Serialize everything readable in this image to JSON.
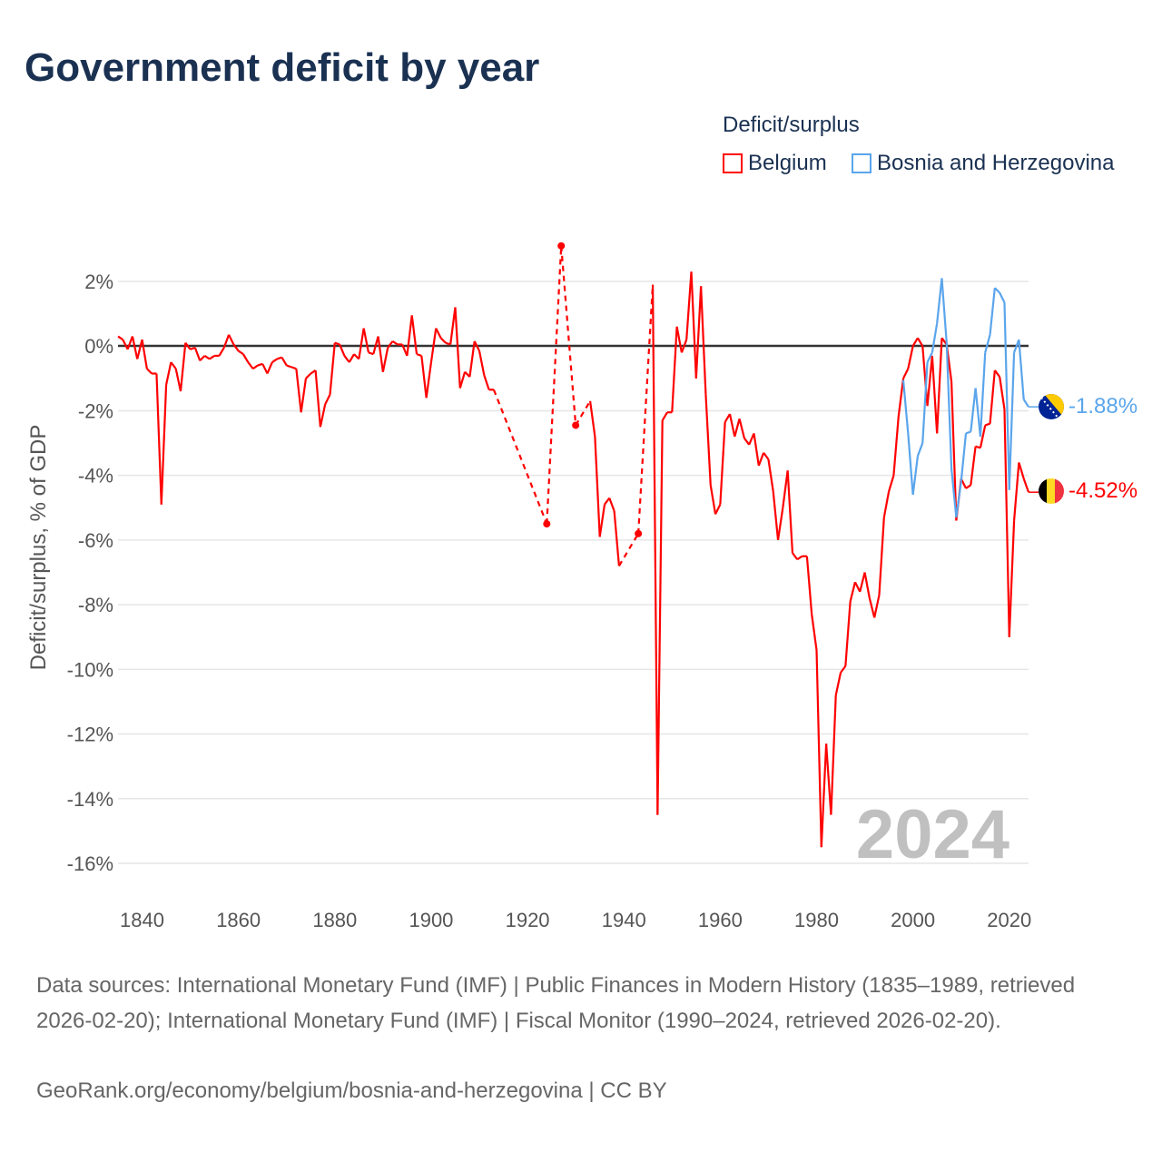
{
  "title": "Government deficit by year",
  "legend": {
    "title": "Deficit/surplus",
    "items": [
      {
        "label": "Belgium",
        "color": "#ff0000"
      },
      {
        "label": "Bosnia and Herzegovina",
        "color": "#5aa5ec"
      }
    ]
  },
  "year_watermark": "2024",
  "end_labels": {
    "bosnia": "-1.88%",
    "belgium": "-4.52%"
  },
  "footer": {
    "sources": "Data sources: International Monetary Fund (IMF) | Public Finances in Modern History (1835–1989, retrieved 2026-02-20); International Monetary Fund (IMF) | Fiscal Monitor (1990–2024, retrieved 2026-02-20).",
    "credit": "GeoRank.org/economy/belgium/bosnia-and-herzegovina | CC BY"
  },
  "chart_data": {
    "type": "line",
    "title": "Government deficit by year",
    "xlabel": "",
    "ylabel": "Deficit/surplus, % of GDP",
    "xlim": [
      1835,
      2024
    ],
    "ylim": [
      -16,
      2
    ],
    "xticks": [
      1840,
      1860,
      1880,
      1900,
      1920,
      1940,
      1960,
      1980,
      2000,
      2020
    ],
    "xtick_labels": [
      "1840",
      "1860",
      "1880",
      "1900",
      "1920",
      "1940",
      "1960",
      "1980",
      "2000",
      "2020"
    ],
    "yticks": [
      2,
      0,
      -2,
      -4,
      -6,
      -8,
      -10,
      -12,
      -14,
      -16
    ],
    "ytick_labels": [
      "2%",
      "0%",
      "-2%",
      "-4%",
      "-6%",
      "-8%",
      "-10%",
      "-12%",
      "-14%",
      "-16%"
    ],
    "grid": true,
    "legend_position": "top-right",
    "series": [
      {
        "name": "Belgium",
        "color": "#ff0000",
        "x": [
          1835,
          1836,
          1837,
          1838,
          1839,
          1840,
          1841,
          1842,
          1843,
          1844,
          1845,
          1846,
          1847,
          1848,
          1849,
          1850,
          1851,
          1852,
          1853,
          1854,
          1855,
          1856,
          1857,
          1858,
          1859,
          1860,
          1861,
          1862,
          1863,
          1864,
          1865,
          1866,
          1867,
          1868,
          1869,
          1870,
          1871,
          1872,
          1873,
          1874,
          1875,
          1876,
          1877,
          1878,
          1879,
          1880,
          1881,
          1882,
          1883,
          1884,
          1885,
          1886,
          1887,
          1888,
          1889,
          1890,
          1891,
          1892,
          1893,
          1894,
          1895,
          1896,
          1897,
          1898,
          1899,
          1900,
          1901,
          1902,
          1903,
          1904,
          1905,
          1906,
          1907,
          1908,
          1909,
          1910,
          1911,
          1912,
          1913,
          1924,
          1927,
          1930,
          1933,
          1934,
          1935,
          1936,
          1937,
          1938,
          1939,
          1943,
          1946,
          1947,
          1948,
          1949,
          1950,
          1951,
          1952,
          1953,
          1954,
          1955,
          1956,
          1957,
          1958,
          1959,
          1960,
          1961,
          1962,
          1963,
          1964,
          1965,
          1966,
          1967,
          1968,
          1969,
          1970,
          1971,
          1972,
          1973,
          1974,
          1975,
          1976,
          1977,
          1978,
          1979,
          1980,
          1981,
          1982,
          1983,
          1984,
          1985,
          1986,
          1987,
          1988,
          1989,
          1990,
          1991,
          1992,
          1993,
          1994,
          1995,
          1996,
          1997,
          1998,
          1999,
          2000,
          2001,
          2002,
          2003,
          2004,
          2005,
          2006,
          2007,
          2008,
          2009,
          2010,
          2011,
          2012,
          2013,
          2014,
          2015,
          2016,
          2017,
          2018,
          2019,
          2020,
          2021,
          2022,
          2023,
          2024
        ],
        "y": [
          0.3,
          0.2,
          -0.1,
          0.3,
          -0.4,
          0.2,
          -0.7,
          -0.85,
          -0.85,
          -4.9,
          -1.2,
          -0.5,
          -0.7,
          -1.4,
          0.1,
          -0.1,
          -0.05,
          -0.45,
          -0.3,
          -0.4,
          -0.3,
          -0.3,
          -0.05,
          0.35,
          0.05,
          -0.15,
          -0.25,
          -0.5,
          -0.7,
          -0.6,
          -0.55,
          -0.85,
          -0.5,
          -0.4,
          -0.35,
          -0.6,
          -0.65,
          -0.7,
          -2.05,
          -1.0,
          -0.85,
          -0.75,
          -2.5,
          -1.8,
          -1.5,
          0.1,
          0.05,
          -0.3,
          -0.5,
          -0.25,
          -0.4,
          0.55,
          -0.2,
          -0.25,
          0.3,
          -0.8,
          -0.05,
          0.15,
          0.05,
          0.05,
          -0.3,
          0.95,
          -0.25,
          -0.3,
          -1.6,
          -0.5,
          0.55,
          0.25,
          0.1,
          0.05,
          1.2,
          -1.3,
          -0.8,
          -0.95,
          0.15,
          -0.15,
          -0.9,
          -1.35,
          -1.35,
          -5.5,
          3.1,
          -2.45,
          -1.7,
          -2.8,
          -5.9,
          -4.9,
          -4.7,
          -5.1,
          -6.8,
          -5.8,
          1.9,
          -14.5,
          -2.3,
          -2.05,
          -2.05,
          0.6,
          -0.2,
          0.2,
          2.3,
          -1.0,
          1.85,
          -1.5,
          -4.3,
          -5.2,
          -4.9,
          -2.35,
          -2.1,
          -2.8,
          -2.25,
          -2.85,
          -3.05,
          -2.7,
          -3.7,
          -3.3,
          -3.5,
          -4.5,
          -6.0,
          -5.0,
          -3.85,
          -6.4,
          -6.6,
          -6.5,
          -6.5,
          -8.3,
          -9.4,
          -15.5,
          -12.3,
          -14.5,
          -10.8,
          -10.1,
          -9.9,
          -7.9,
          -7.3,
          -7.6,
          -7.0,
          -7.8,
          -8.4,
          -7.7,
          -5.3,
          -4.5,
          -4.0,
          -2.2,
          -1.0,
          -0.7,
          0.0,
          0.25,
          0.0,
          -1.85,
          -0.3,
          -2.7,
          0.25,
          0.05,
          -1.1,
          -5.4,
          -4.1,
          -4.4,
          -4.3,
          -3.1,
          -3.15,
          -2.45,
          -2.4,
          -0.75,
          -0.95,
          -1.95,
          -9.0,
          -5.4,
          -3.6,
          -4.1,
          -4.52
        ]
      },
      {
        "name": "Bosnia and Herzegovina",
        "color": "#5aa5ec",
        "x": [
          1998,
          1999,
          2000,
          2001,
          2002,
          2003,
          2004,
          2005,
          2006,
          2007,
          2008,
          2009,
          2010,
          2011,
          2012,
          2013,
          2014,
          2015,
          2016,
          2017,
          2018,
          2019,
          2020,
          2021,
          2022,
          2023,
          2024
        ],
        "y": [
          -1.05,
          -2.7,
          -4.6,
          -3.4,
          -3.0,
          -0.5,
          -0.2,
          0.7,
          2.1,
          0.1,
          -3.8,
          -5.3,
          -4.2,
          -2.7,
          -2.65,
          -1.3,
          -2.8,
          -0.2,
          0.35,
          1.8,
          1.65,
          1.35,
          -4.45,
          -0.2,
          0.2,
          -1.65,
          -1.88
        ]
      }
    ]
  }
}
